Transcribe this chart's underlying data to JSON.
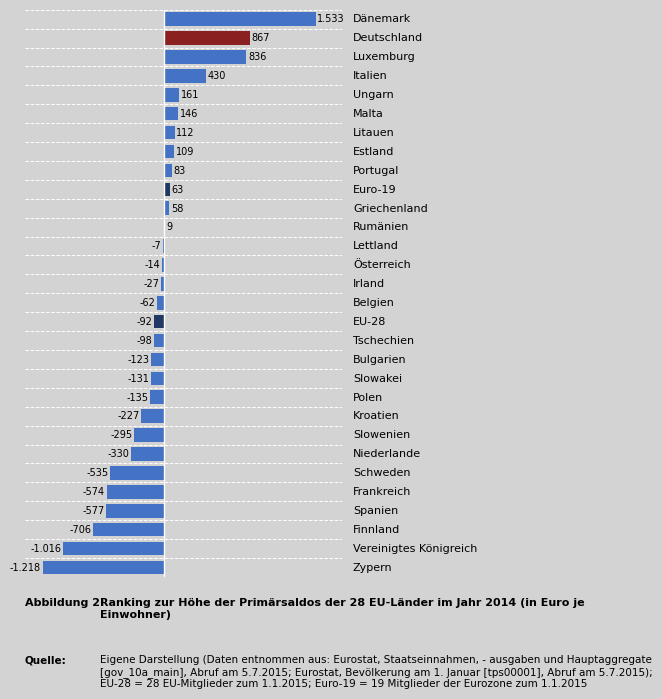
{
  "categories": [
    "Dänemark",
    "Deutschland",
    "Luxemburg",
    "Italien",
    "Ungarn",
    "Malta",
    "Litauen",
    "Estland",
    "Portugal",
    "Euro-19",
    "Griechenland",
    "Rumänien",
    "Lettland",
    "Österreich",
    "Irland",
    "Belgien",
    "EU-28",
    "Tschechien",
    "Bulgarien",
    "Slowakei",
    "Polen",
    "Kroatien",
    "Slowenien",
    "Niederlande",
    "Schweden",
    "Frankreich",
    "Spanien",
    "Finnland",
    "Vereinigtes Königreich",
    "Zypern"
  ],
  "values": [
    1533,
    867,
    836,
    430,
    161,
    146,
    112,
    109,
    83,
    63,
    58,
    9,
    -7,
    -14,
    -27,
    -62,
    -92,
    -98,
    -123,
    -131,
    -135,
    -227,
    -295,
    -330,
    -535,
    -574,
    -577,
    -706,
    -1016,
    -1218
  ],
  "bar_colors": [
    "#4472C4",
    "#8B2020",
    "#4472C4",
    "#4472C4",
    "#4472C4",
    "#4472C4",
    "#4472C4",
    "#4472C4",
    "#4472C4",
    "#1F3864",
    "#4472C4",
    "#4472C4",
    "#4472C4",
    "#4472C4",
    "#4472C4",
    "#4472C4",
    "#1F3864",
    "#4472C4",
    "#4472C4",
    "#4472C4",
    "#4472C4",
    "#4472C4",
    "#4472C4",
    "#4472C4",
    "#4472C4",
    "#4472C4",
    "#4472C4",
    "#4472C4",
    "#4472C4",
    "#4472C4"
  ],
  "value_labels": [
    "1.533",
    "867",
    "836",
    "430",
    "161",
    "146",
    "112",
    "109",
    "83",
    "63",
    "58",
    "9",
    "-7",
    "-14",
    "-27",
    "-62",
    "-92",
    "-98",
    "-123",
    "-131",
    "-135",
    "-227",
    "-295",
    "-330",
    "-535",
    "-574",
    "-577",
    "-706",
    "-1.016",
    "-1.218"
  ],
  "background_color": "#D3D3D3",
  "plot_bg_color": "#D3D3D3",
  "grid_color": "#FFFFFF",
  "xlim": [
    -1400,
    1800
  ],
  "title_label": "Abbildung 2:",
  "title_text": "Ranking zur Höhe der Primärsaldos der 28 EU-Länder im Jahr 2014 (in Euro je\nEinwohner)",
  "source_label": "Quelle:",
  "source_text": "Eigene Darstellung (Daten entnommen aus: Eurostat, Staatseinnahmen, - ausgaben und Hauptaggregate\n[gov_10a_main], Abruf am 5.7.2015; Eurostat, Bevölkerung am 1. Januar [tps00001], Abruf am 5.7.2015);\nEU-28 = 28 EU-Mitglieder zum 1.1.2015; Euro-19 = 19 Mitglieder der Eurozone zum 1.1.2015"
}
